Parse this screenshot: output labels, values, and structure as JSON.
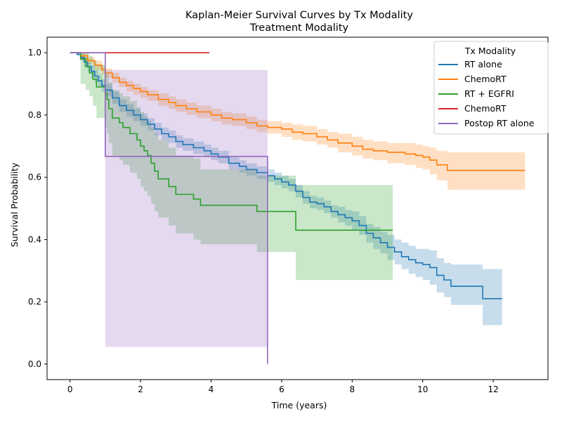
{
  "chart_data": {
    "type": "line",
    "title": "Kaplan-Meier Survival Curves by Tx Modality",
    "subtitle": "Treatment Modality",
    "xlabel": "Time (years)",
    "ylabel": "Survival Probability",
    "xlim": [
      -0.65,
      13.55
    ],
    "ylim": [
      -0.05,
      1.05
    ],
    "xticks": [
      0,
      2,
      4,
      6,
      8,
      10,
      12
    ],
    "yticks": [
      0.0,
      0.2,
      0.4,
      0.6,
      0.8,
      1.0
    ],
    "xtick_labels": [
      "0",
      "2",
      "4",
      "6",
      "8",
      "10",
      "12"
    ],
    "ytick_labels": [
      "0.0",
      "0.2",
      "0.4",
      "0.6",
      "0.8",
      "1.0"
    ],
    "grid": false,
    "legend": {
      "title": "Tx Modality",
      "placement": "top-right"
    },
    "series": [
      {
        "name": "RT alone",
        "color": "#1f77b4",
        "x": [
          0,
          0.2,
          0.3,
          0.4,
          0.5,
          0.6,
          0.7,
          0.8,
          0.9,
          1.0,
          1.2,
          1.4,
          1.6,
          1.8,
          2.0,
          2.2,
          2.4,
          2.6,
          2.8,
          3.0,
          3.2,
          3.5,
          3.8,
          4.0,
          4.2,
          4.5,
          4.8,
          5.0,
          5.3,
          5.6,
          5.8,
          6.0,
          6.2,
          6.4,
          6.6,
          6.8,
          7.0,
          7.2,
          7.4,
          7.6,
          7.8,
          8.0,
          8.2,
          8.4,
          8.6,
          8.8,
          9.0,
          9.2,
          9.4,
          9.6,
          9.8,
          10.0,
          10.2,
          10.4,
          10.6,
          10.8,
          11.0,
          11.2,
          11.4,
          11.6,
          11.7,
          12.0,
          12.25
        ],
        "y": [
          1.0,
          0.995,
          0.985,
          0.97,
          0.955,
          0.94,
          0.925,
          0.91,
          0.895,
          0.88,
          0.855,
          0.83,
          0.815,
          0.8,
          0.785,
          0.77,
          0.755,
          0.74,
          0.73,
          0.715,
          0.705,
          0.695,
          0.685,
          0.675,
          0.665,
          0.645,
          0.635,
          0.625,
          0.615,
          0.605,
          0.595,
          0.585,
          0.575,
          0.555,
          0.535,
          0.52,
          0.515,
          0.505,
          0.49,
          0.48,
          0.47,
          0.46,
          0.445,
          0.42,
          0.405,
          0.39,
          0.375,
          0.36,
          0.345,
          0.335,
          0.325,
          0.32,
          0.31,
          0.285,
          0.27,
          0.25,
          0.25,
          0.25,
          0.25,
          0.25,
          0.21,
          0.21,
          0.21
        ],
        "lower": [
          1.0,
          0.99,
          0.975,
          0.955,
          0.94,
          0.92,
          0.905,
          0.89,
          0.875,
          0.86,
          0.835,
          0.81,
          0.795,
          0.78,
          0.765,
          0.75,
          0.735,
          0.72,
          0.71,
          0.695,
          0.685,
          0.675,
          0.665,
          0.655,
          0.645,
          0.625,
          0.615,
          0.605,
          0.595,
          0.585,
          0.575,
          0.565,
          0.555,
          0.535,
          0.515,
          0.5,
          0.495,
          0.485,
          0.47,
          0.455,
          0.445,
          0.43,
          0.415,
          0.39,
          0.37,
          0.355,
          0.335,
          0.32,
          0.305,
          0.29,
          0.28,
          0.27,
          0.255,
          0.23,
          0.215,
          0.19,
          0.19,
          0.19,
          0.19,
          0.19,
          0.125,
          0.125,
          0.125
        ],
        "upper": [
          1.0,
          1.0,
          0.995,
          0.985,
          0.97,
          0.96,
          0.945,
          0.93,
          0.915,
          0.9,
          0.875,
          0.85,
          0.835,
          0.82,
          0.805,
          0.79,
          0.775,
          0.76,
          0.75,
          0.735,
          0.725,
          0.715,
          0.705,
          0.695,
          0.685,
          0.665,
          0.655,
          0.645,
          0.635,
          0.625,
          0.615,
          0.605,
          0.595,
          0.575,
          0.555,
          0.54,
          0.535,
          0.525,
          0.51,
          0.505,
          0.495,
          0.49,
          0.475,
          0.45,
          0.44,
          0.425,
          0.415,
          0.4,
          0.39,
          0.38,
          0.37,
          0.37,
          0.365,
          0.34,
          0.325,
          0.32,
          0.32,
          0.32,
          0.32,
          0.32,
          0.305,
          0.305,
          0.305
        ]
      },
      {
        "name": "ChemoRT",
        "color": "#ff7f0e",
        "x": [
          0,
          0.3,
          0.5,
          0.7,
          0.9,
          1.0,
          1.2,
          1.4,
          1.6,
          1.8,
          2.0,
          2.2,
          2.5,
          2.8,
          3.0,
          3.3,
          3.6,
          4.0,
          4.3,
          4.6,
          5.0,
          5.3,
          5.6,
          6.0,
          6.3,
          6.6,
          7.0,
          7.3,
          7.6,
          8.0,
          8.3,
          8.6,
          9.0,
          9.5,
          9.8,
          10.0,
          10.2,
          10.4,
          10.7,
          12.9
        ],
        "y": [
          1.0,
          0.99,
          0.975,
          0.96,
          0.945,
          0.935,
          0.92,
          0.905,
          0.895,
          0.885,
          0.875,
          0.865,
          0.85,
          0.84,
          0.83,
          0.82,
          0.81,
          0.8,
          0.79,
          0.785,
          0.775,
          0.765,
          0.76,
          0.755,
          0.745,
          0.74,
          0.73,
          0.72,
          0.71,
          0.7,
          0.69,
          0.685,
          0.68,
          0.675,
          0.67,
          0.665,
          0.655,
          0.64,
          0.622,
          0.622
        ],
        "lower": [
          1.0,
          0.98,
          0.965,
          0.945,
          0.93,
          0.92,
          0.905,
          0.89,
          0.875,
          0.865,
          0.855,
          0.845,
          0.83,
          0.82,
          0.81,
          0.8,
          0.79,
          0.78,
          0.77,
          0.765,
          0.755,
          0.745,
          0.74,
          0.73,
          0.72,
          0.715,
          0.705,
          0.695,
          0.68,
          0.67,
          0.66,
          0.655,
          0.645,
          0.64,
          0.63,
          0.625,
          0.61,
          0.59,
          0.56,
          0.56
        ],
        "upper": [
          1.0,
          1.0,
          0.985,
          0.975,
          0.96,
          0.95,
          0.935,
          0.92,
          0.91,
          0.9,
          0.89,
          0.88,
          0.87,
          0.86,
          0.85,
          0.84,
          0.83,
          0.82,
          0.81,
          0.805,
          0.795,
          0.785,
          0.78,
          0.775,
          0.77,
          0.765,
          0.755,
          0.745,
          0.74,
          0.73,
          0.72,
          0.715,
          0.71,
          0.71,
          0.705,
          0.7,
          0.695,
          0.685,
          0.68,
          0.68
        ]
      },
      {
        "name": "RT + EGFRI",
        "color": "#2ca02c",
        "x": [
          0,
          0.3,
          0.45,
          0.55,
          0.65,
          0.75,
          0.9,
          1.0,
          1.05,
          1.1,
          1.2,
          1.4,
          1.5,
          1.7,
          1.9,
          2.0,
          2.1,
          2.2,
          2.3,
          2.4,
          2.5,
          2.6,
          2.8,
          3.0,
          3.1,
          3.5,
          3.7,
          3.8,
          4.5,
          5.0,
          5.3,
          5.6,
          6.0,
          6.4,
          8.0,
          9.15
        ],
        "y": [
          1.0,
          0.98,
          0.955,
          0.935,
          0.915,
          0.89,
          0.89,
          0.87,
          0.85,
          0.82,
          0.79,
          0.775,
          0.76,
          0.74,
          0.72,
          0.7,
          0.685,
          0.67,
          0.645,
          0.62,
          0.595,
          0.595,
          0.57,
          0.545,
          0.545,
          0.53,
          0.51,
          0.51,
          0.51,
          0.51,
          0.49,
          0.49,
          0.49,
          0.43,
          0.43,
          0.43
        ],
        "lower": [
          1.0,
          0.9,
          0.88,
          0.86,
          0.83,
          0.79,
          0.79,
          0.76,
          0.74,
          0.71,
          0.67,
          0.655,
          0.64,
          0.615,
          0.595,
          0.57,
          0.555,
          0.54,
          0.515,
          0.49,
          0.47,
          0.47,
          0.445,
          0.42,
          0.42,
          0.4,
          0.385,
          0.385,
          0.385,
          0.385,
          0.36,
          0.36,
          0.36,
          0.27,
          0.27,
          0.27
        ],
        "upper": [
          1.0,
          1.0,
          1.0,
          0.99,
          0.975,
          0.96,
          0.96,
          0.94,
          0.93,
          0.905,
          0.88,
          0.87,
          0.86,
          0.845,
          0.825,
          0.81,
          0.795,
          0.78,
          0.76,
          0.74,
          0.72,
          0.72,
          0.695,
          0.67,
          0.67,
          0.66,
          0.625,
          0.625,
          0.625,
          0.625,
          0.605,
          0.605,
          0.605,
          0.575,
          0.575,
          0.575
        ]
      },
      {
        "name": "ChemoRT",
        "color": "#d62728",
        "x": [
          0,
          3.95
        ],
        "y": [
          1.0,
          1.0
        ],
        "lower": [
          1.0,
          1.0
        ],
        "upper": [
          1.0,
          1.0
        ]
      },
      {
        "name": "Postop RT alone",
        "color": "#9467bd",
        "x": [
          0,
          1.0,
          5.6
        ],
        "y": [
          1.0,
          0.667,
          0.0
        ],
        "lower": [
          1.0,
          0.055,
          0.0
        ],
        "upper": [
          1.0,
          0.945,
          0.0
        ]
      }
    ]
  }
}
